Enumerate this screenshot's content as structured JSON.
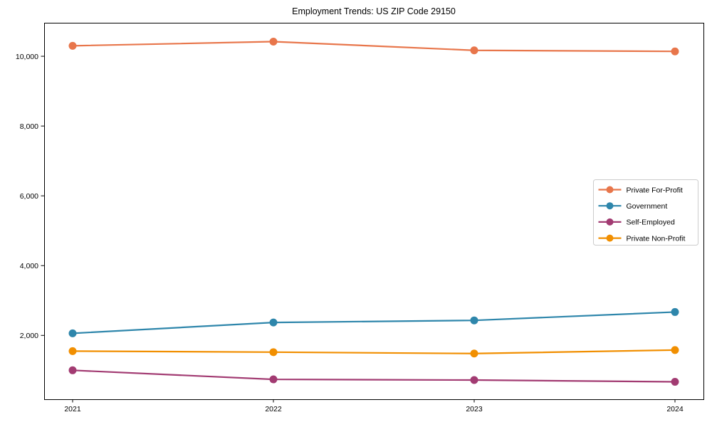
{
  "chart_data": {
    "type": "line",
    "title": "Employment Trends: US ZIP Code 29150",
    "x": [
      "2021",
      "2022",
      "2023",
      "2024"
    ],
    "series": [
      {
        "name": "Private For-Profit",
        "color": "#E8764B",
        "values": [
          10300,
          10420,
          10170,
          10140
        ]
      },
      {
        "name": "Government",
        "color": "#2E86AB",
        "values": [
          2060,
          2370,
          2430,
          2670
        ]
      },
      {
        "name": "Self-Employed",
        "color": "#A23B72",
        "values": [
          1000,
          740,
          720,
          670
        ]
      },
      {
        "name": "Private Non-Profit",
        "color": "#F18F01",
        "values": [
          1550,
          1520,
          1480,
          1580
        ]
      }
    ],
    "yticks": [
      {
        "value": 2000,
        "label": "2,000"
      },
      {
        "value": 4000,
        "label": "4,000"
      },
      {
        "value": 6000,
        "label": "6,000"
      },
      {
        "value": 8000,
        "label": "8,000"
      },
      {
        "value": 10000,
        "label": "10,000"
      }
    ],
    "ylim": [
      170,
      10960
    ],
    "grid": false,
    "legend_position": "center-right",
    "axis_color": "#000000",
    "legend_border_color": "#cccccc"
  }
}
